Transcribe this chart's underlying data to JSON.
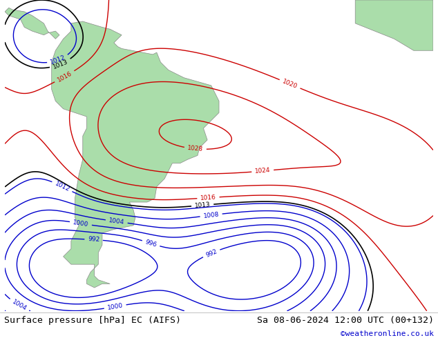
{
  "title_left": "Surface pressure [hPa] EC (AIFS)",
  "title_right": "Sa 08-06-2024 12:00 UTC (00+132)",
  "credit": "©weatheronline.co.uk",
  "bg_color": "#d0d8e8",
  "land_color": "#aaddaa",
  "border_color": "#888888",
  "isobar_color_low": "#0000cc",
  "isobar_color_high": "#cc0000",
  "isobar_color_1013": "#000000",
  "figsize": [
    6.34,
    4.9
  ],
  "dpi": 100,
  "bottom_bar_color": "#e8e8e8",
  "title_fontsize": 9.5,
  "credit_color": "#0000cc"
}
